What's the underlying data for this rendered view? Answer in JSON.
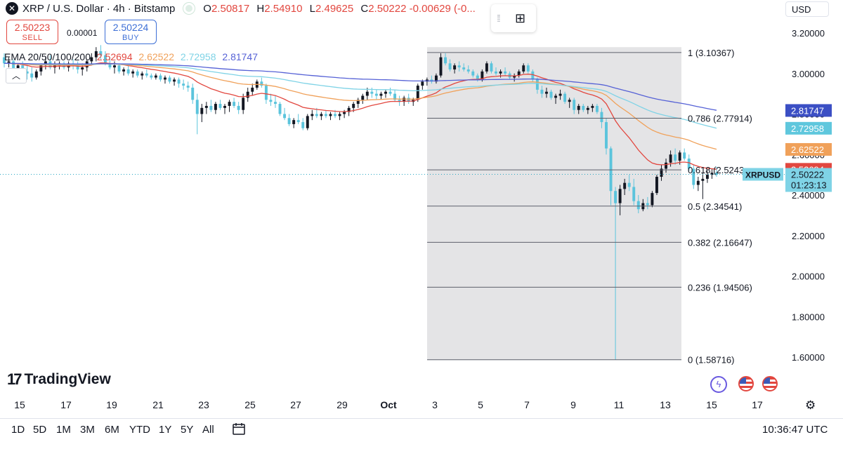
{
  "header": {
    "symbol_title": "XRP / U.S. Dollar · 4h · Bitstamp",
    "ohlc": [
      {
        "key": "O",
        "value": "2.50817"
      },
      {
        "key": "H",
        "value": "2.54910"
      },
      {
        "key": "L",
        "value": "2.49625"
      },
      {
        "key": "C",
        "value": "2.50222"
      }
    ],
    "change": "-0.00629 (-0..."
  },
  "trade": {
    "sell_price": "2.50223",
    "sell_label": "SELL",
    "buy_price": "2.50224",
    "buy_label": "BUY",
    "spread": "0.00001"
  },
  "ema_legend": {
    "label": "EMA 20/50/100/200",
    "values": [
      {
        "value": "2.52694",
        "color": "#e2473f"
      },
      {
        "value": "2.62522",
        "color": "#f0a15a"
      },
      {
        "value": "2.72958",
        "color": "#7fd3e6"
      },
      {
        "value": "2.81747",
        "color": "#5561d6"
      }
    ]
  },
  "currency": "USD",
  "brand": "TradingView",
  "time_ranges": [
    "1D",
    "5D",
    "1M",
    "3M",
    "6M",
    "YTD",
    "1Y",
    "5Y",
    "All"
  ],
  "clock": "10:36:47 UTC",
  "icons": {
    "symbol": "xrp-logo-icon",
    "collapse": "chevron-up-icon",
    "widget": "apps-add-icon",
    "settings": "gear-icon",
    "calendar": "calendar-icon",
    "events": [
      "lightning-icon",
      "us-flag-icon",
      "us-flag-icon"
    ]
  },
  "chart_data": {
    "type": "candlestick",
    "x_tick_labels": [
      "15",
      "17",
      "19",
      "21",
      "23",
      "25",
      "27",
      "29",
      "Oct",
      "3",
      "5",
      "7",
      "9",
      "11",
      "13",
      "15",
      "17"
    ],
    "y_tick_labels": [
      "3.20000",
      "3.00000",
      "2.80000",
      "2.60000",
      "2.40000",
      "2.20000",
      "2.00000",
      "1.80000",
      "1.60000"
    ],
    "ylim": [
      1.55,
      3.25
    ],
    "last_price": {
      "symbol": "XRPUSD",
      "value": "2.50222",
      "countdown": "01:23:13",
      "color": "#26a6c2"
    },
    "ema_axis_labels": [
      {
        "value": "2.81747",
        "color": "#3b4fc4"
      },
      {
        "value": "2.72958",
        "color": "#5fc7dd"
      },
      {
        "value": "2.62522",
        "color": "#f0a15a"
      },
      {
        "value": "2.52694",
        "color": "#e2473f"
      }
    ],
    "fibonacci": {
      "levels": [
        {
          "ratio": "1",
          "price": 3.10367,
          "label": "1 (3.10367)"
        },
        {
          "ratio": "0.786",
          "price": 2.77914,
          "label": "0.786 (2.77914)"
        },
        {
          "ratio": "0.618",
          "price": 2.5243,
          "label": "0.618 (2.5243"
        },
        {
          "ratio": "0.5",
          "price": 2.34541,
          "label": "0.5 (2.34541)"
        },
        {
          "ratio": "0.382",
          "price": 2.16647,
          "label": "0.382 (2.16647)"
        },
        {
          "ratio": "0.236",
          "price": 1.94506,
          "label": "0.236 (1.94506)"
        },
        {
          "ratio": "0",
          "price": 1.58716,
          "label": "0 (1.58716)"
        }
      ]
    },
    "candles_ohlc": [
      [
        3.08,
        3.1,
        3.03,
        3.05
      ],
      [
        3.05,
        3.08,
        3.03,
        3.06
      ],
      [
        3.06,
        3.07,
        3.0,
        3.02
      ],
      [
        3.02,
        3.05,
        2.99,
        3.04
      ],
      [
        3.04,
        3.06,
        3.0,
        3.01
      ],
      [
        3.01,
        3.04,
        2.97,
        3.0
      ],
      [
        3.0,
        3.03,
        2.96,
        2.98
      ],
      [
        2.98,
        3.02,
        2.97,
        3.01
      ],
      [
        3.01,
        3.05,
        2.99,
        3.04
      ],
      [
        3.04,
        3.08,
        3.02,
        3.06
      ],
      [
        3.06,
        3.09,
        3.02,
        3.03
      ],
      [
        3.03,
        3.06,
        3.0,
        3.04
      ],
      [
        3.04,
        3.06,
        3.02,
        3.05
      ],
      [
        3.05,
        3.06,
        3.02,
        3.03
      ],
      [
        3.03,
        3.06,
        3.01,
        3.05
      ],
      [
        3.05,
        3.07,
        3.02,
        3.04
      ],
      [
        3.04,
        3.06,
        3.0,
        3.02
      ],
      [
        3.02,
        3.05,
        2.99,
        3.03
      ],
      [
        3.03,
        3.07,
        3.01,
        3.06
      ],
      [
        3.06,
        3.1,
        3.04,
        3.08
      ],
      [
        3.08,
        3.13,
        3.06,
        3.11
      ],
      [
        3.11,
        3.14,
        3.07,
        3.09
      ],
      [
        3.09,
        3.11,
        3.04,
        3.05
      ],
      [
        3.05,
        3.08,
        3.02,
        3.03
      ],
      [
        3.03,
        3.06,
        3.0,
        3.04
      ],
      [
        3.04,
        3.05,
        3.0,
        3.01
      ],
      [
        3.01,
        3.03,
        2.99,
        3.02
      ],
      [
        3.02,
        3.04,
        2.99,
        3.0
      ],
      [
        3.0,
        3.02,
        2.98,
        3.01
      ],
      [
        3.01,
        3.02,
        2.98,
        2.99
      ],
      [
        2.99,
        3.01,
        2.97,
        3.0
      ],
      [
        3.0,
        3.02,
        2.98,
        2.99
      ],
      [
        2.99,
        3.0,
        2.97,
        2.98
      ],
      [
        2.98,
        3.0,
        2.97,
        2.99
      ],
      [
        2.99,
        3.0,
        2.96,
        2.97
      ],
      [
        2.97,
        2.99,
        2.95,
        2.98
      ],
      [
        2.98,
        2.99,
        2.95,
        2.96
      ],
      [
        2.96,
        2.98,
        2.94,
        2.97
      ],
      [
        2.97,
        2.98,
        2.93,
        2.95
      ],
      [
        2.95,
        2.97,
        2.92,
        2.94
      ],
      [
        2.94,
        2.96,
        2.91,
        2.93
      ],
      [
        2.93,
        2.95,
        2.85,
        2.87
      ],
      [
        2.87,
        2.9,
        2.7,
        2.8
      ],
      [
        2.8,
        2.85,
        2.76,
        2.83
      ],
      [
        2.83,
        2.86,
        2.8,
        2.84
      ],
      [
        2.84,
        2.87,
        2.81,
        2.82
      ],
      [
        2.82,
        2.86,
        2.8,
        2.85
      ],
      [
        2.85,
        2.87,
        2.82,
        2.83
      ],
      [
        2.83,
        2.85,
        2.8,
        2.84
      ],
      [
        2.84,
        2.87,
        2.81,
        2.86
      ],
      [
        2.86,
        2.88,
        2.83,
        2.84
      ],
      [
        2.84,
        2.86,
        2.8,
        2.82
      ],
      [
        2.82,
        2.9,
        2.8,
        2.88
      ],
      [
        2.88,
        2.93,
        2.86,
        2.91
      ],
      [
        2.91,
        2.95,
        2.89,
        2.93
      ],
      [
        2.93,
        2.97,
        2.92,
        2.96
      ],
      [
        2.96,
        2.98,
        2.93,
        2.94
      ],
      [
        2.94,
        2.95,
        2.85,
        2.87
      ],
      [
        2.87,
        2.9,
        2.84,
        2.86
      ],
      [
        2.86,
        2.89,
        2.83,
        2.85
      ],
      [
        2.85,
        2.86,
        2.79,
        2.8
      ],
      [
        2.8,
        2.83,
        2.77,
        2.78
      ],
      [
        2.78,
        2.8,
        2.74,
        2.75
      ],
      [
        2.75,
        2.78,
        2.73,
        2.77
      ],
      [
        2.77,
        2.8,
        2.75,
        2.76
      ],
      [
        2.76,
        2.78,
        2.72,
        2.73
      ],
      [
        2.73,
        2.8,
        2.72,
        2.79
      ],
      [
        2.79,
        2.82,
        2.77,
        2.8
      ],
      [
        2.8,
        2.83,
        2.78,
        2.79
      ],
      [
        2.79,
        2.81,
        2.77,
        2.8
      ],
      [
        2.8,
        2.82,
        2.78,
        2.79
      ],
      [
        2.79,
        2.81,
        2.77,
        2.8
      ],
      [
        2.8,
        2.82,
        2.78,
        2.79
      ],
      [
        2.79,
        2.81,
        2.77,
        2.8
      ],
      [
        2.8,
        2.82,
        2.78,
        2.81
      ],
      [
        2.81,
        2.84,
        2.79,
        2.83
      ],
      [
        2.83,
        2.86,
        2.81,
        2.85
      ],
      [
        2.85,
        2.88,
        2.83,
        2.87
      ],
      [
        2.87,
        2.9,
        2.85,
        2.89
      ],
      [
        2.89,
        2.93,
        2.87,
        2.91
      ],
      [
        2.91,
        2.93,
        2.88,
        2.9
      ],
      [
        2.9,
        2.92,
        2.87,
        2.89
      ],
      [
        2.89,
        2.91,
        2.87,
        2.9
      ],
      [
        2.9,
        2.92,
        2.88,
        2.91
      ],
      [
        2.91,
        2.93,
        2.89,
        2.9
      ],
      [
        2.9,
        2.92,
        2.86,
        2.87
      ],
      [
        2.87,
        2.89,
        2.84,
        2.86
      ],
      [
        2.86,
        2.89,
        2.84,
        2.88
      ],
      [
        2.88,
        2.9,
        2.85,
        2.86
      ],
      [
        2.86,
        2.88,
        2.84,
        2.87
      ],
      [
        2.87,
        2.95,
        2.86,
        2.94
      ],
      [
        2.94,
        2.97,
        2.92,
        2.96
      ],
      [
        2.96,
        2.98,
        2.94,
        2.97
      ],
      [
        2.97,
        2.99,
        2.95,
        2.96
      ],
      [
        2.96,
        3.0,
        2.95,
        2.99
      ],
      [
        2.99,
        3.1,
        2.98,
        3.08
      ],
      [
        3.08,
        3.1,
        3.04,
        3.05
      ],
      [
        3.05,
        3.07,
        3.01,
        3.02
      ],
      [
        3.02,
        3.05,
        3.0,
        3.04
      ],
      [
        3.04,
        3.06,
        3.01,
        3.03
      ],
      [
        3.03,
        3.05,
        3.01,
        3.02
      ],
      [
        3.02,
        3.04,
        3.0,
        3.01
      ],
      [
        3.01,
        3.02,
        2.98,
        2.99
      ],
      [
        2.99,
        3.0,
        2.96,
        2.97
      ],
      [
        2.97,
        3.02,
        2.96,
        3.01
      ],
      [
        3.01,
        3.06,
        3.0,
        3.05
      ],
      [
        3.05,
        3.06,
        3.0,
        3.01
      ],
      [
        3.01,
        3.03,
        2.99,
        3.0
      ],
      [
        3.0,
        3.02,
        2.98,
        3.01
      ],
      [
        3.01,
        3.03,
        2.99,
        3.0
      ],
      [
        3.0,
        3.01,
        2.97,
        2.98
      ],
      [
        2.98,
        3.0,
        2.96,
        2.99
      ],
      [
        2.99,
        3.02,
        2.98,
        3.01
      ],
      [
        3.01,
        3.05,
        3.0,
        3.04
      ],
      [
        3.04,
        3.05,
        3.0,
        3.01
      ],
      [
        3.01,
        3.02,
        2.96,
        2.97
      ],
      [
        2.97,
        2.98,
        2.9,
        2.92
      ],
      [
        2.92,
        2.94,
        2.88,
        2.9
      ],
      [
        2.9,
        2.93,
        2.88,
        2.91
      ],
      [
        2.91,
        2.92,
        2.87,
        2.88
      ],
      [
        2.88,
        2.9,
        2.85,
        2.89
      ],
      [
        2.89,
        2.92,
        2.87,
        2.9
      ],
      [
        2.9,
        2.91,
        2.85,
        2.86
      ],
      [
        2.86,
        2.88,
        2.83,
        2.87
      ],
      [
        2.87,
        2.88,
        2.8,
        2.82
      ],
      [
        2.82,
        2.85,
        2.8,
        2.84
      ],
      [
        2.84,
        2.85,
        2.81,
        2.82
      ],
      [
        2.82,
        2.84,
        2.8,
        2.83
      ],
      [
        2.83,
        2.85,
        2.81,
        2.84
      ],
      [
        2.84,
        2.85,
        2.8,
        2.81
      ],
      [
        2.81,
        2.83,
        2.73,
        2.76
      ],
      [
        2.76,
        2.78,
        2.6,
        2.63
      ],
      [
        2.63,
        2.64,
        2.35,
        2.42
      ],
      [
        2.42,
        2.44,
        1.58716,
        2.36
      ],
      [
        2.36,
        2.45,
        2.3,
        2.43
      ],
      [
        2.43,
        2.48,
        2.4,
        2.46
      ],
      [
        2.46,
        2.5,
        2.42,
        2.44
      ],
      [
        2.44,
        2.48,
        2.35,
        2.37
      ],
      [
        2.37,
        2.4,
        2.31,
        2.33
      ],
      [
        2.33,
        2.38,
        2.32,
        2.36
      ],
      [
        2.36,
        2.39,
        2.33,
        2.35
      ],
      [
        2.35,
        2.42,
        2.34,
        2.41
      ],
      [
        2.41,
        2.5,
        2.4,
        2.49
      ],
      [
        2.49,
        2.55,
        2.47,
        2.53
      ],
      [
        2.53,
        2.58,
        2.51,
        2.56
      ],
      [
        2.56,
        2.62,
        2.54,
        2.6
      ],
      [
        2.6,
        2.63,
        2.55,
        2.57
      ],
      [
        2.57,
        2.62,
        2.55,
        2.61
      ],
      [
        2.61,
        2.63,
        2.57,
        2.58
      ],
      [
        2.58,
        2.6,
        2.52,
        2.53
      ],
      [
        2.53,
        2.55,
        2.43,
        2.45
      ],
      [
        2.45,
        2.49,
        2.42,
        2.47
      ],
      [
        2.47,
        2.51,
        2.38,
        2.48
      ],
      [
        2.48,
        2.52,
        2.46,
        2.5
      ],
      [
        2.5,
        2.53,
        2.48,
        2.51
      ],
      [
        2.51,
        2.54,
        2.49,
        2.5
      ]
    ]
  }
}
